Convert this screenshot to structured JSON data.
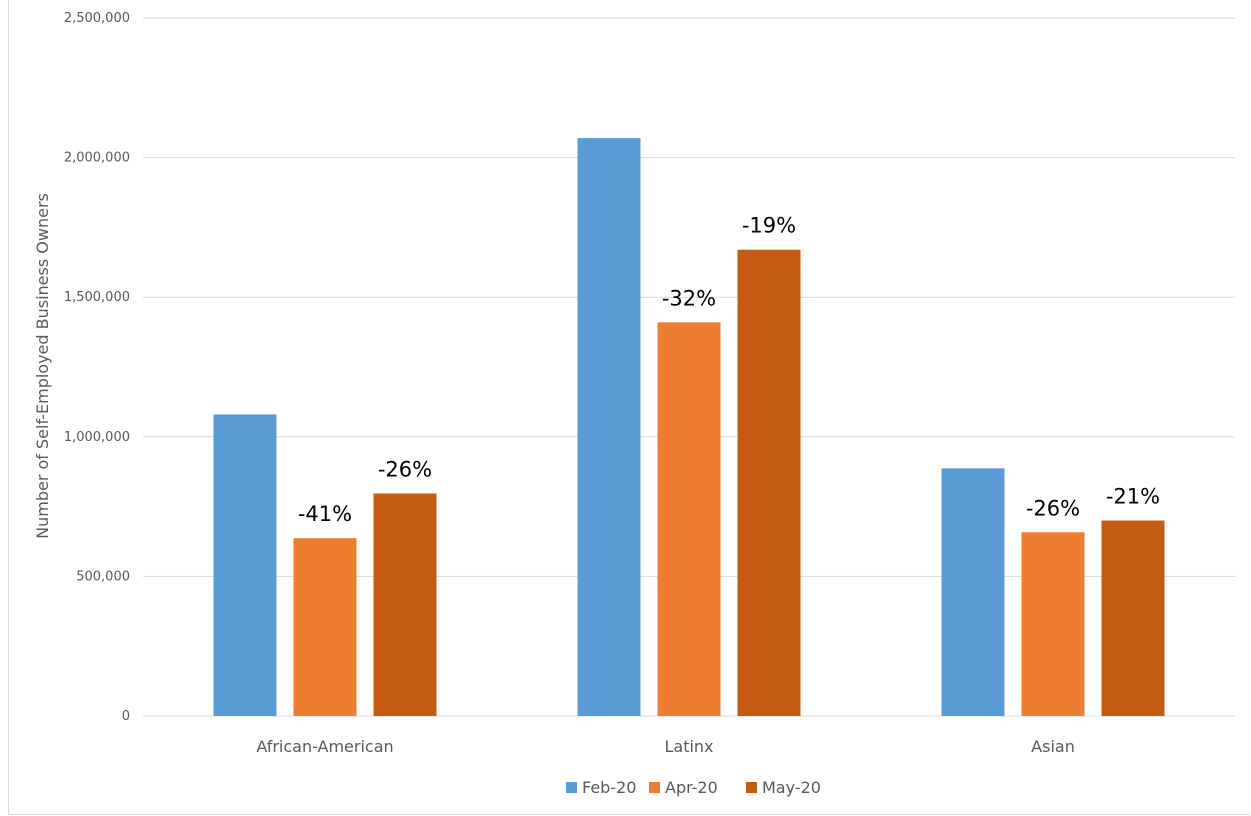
{
  "chart_data": {
    "type": "bar",
    "categories": [
      "African-American",
      "Latinx",
      "Asian"
    ],
    "series": [
      {
        "name": "Feb-20",
        "color": "#5b9bd5",
        "values": [
          1080000,
          2070000,
          887000
        ],
        "labels": [
          "",
          "",
          ""
        ]
      },
      {
        "name": "Apr-20",
        "color": "#ed7d31",
        "values": [
          637000,
          1410000,
          658000
        ],
        "labels": [
          "-41%",
          "-32%",
          "-26%"
        ]
      },
      {
        "name": "May-20",
        "color": "#c55a11",
        "values": [
          797000,
          1670000,
          700000
        ],
        "labels": [
          "-26%",
          "-19%",
          "-21%"
        ]
      }
    ],
    "ylabel": "Number of Self-Employed Business Owners",
    "xlabel": "",
    "ylim": [
      0,
      2500000
    ],
    "yticks": [
      0,
      500000,
      1000000,
      1500000,
      2000000,
      2500000
    ],
    "ytick_labels": [
      "0",
      "500,000",
      "1,000,000",
      "1,500,000",
      "2,000,000",
      "2,500,000"
    ],
    "grid": true,
    "legend": "bottom"
  }
}
